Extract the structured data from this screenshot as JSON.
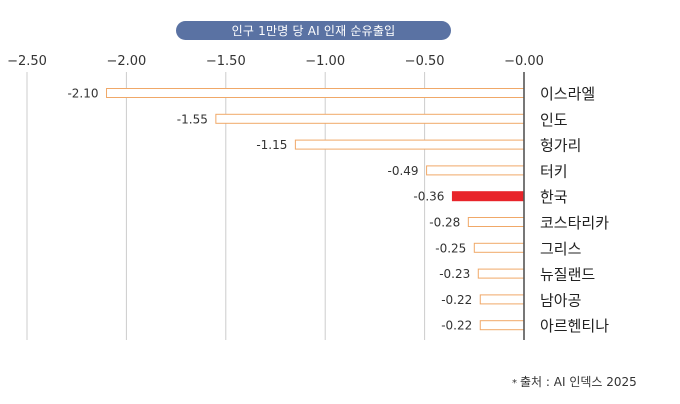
{
  "chart_data": {
    "type": "bar",
    "orientation": "horizontal",
    "title": "인구 1만명 당 AI 인재 순유출입",
    "categories": [
      "이스라엘",
      "인도",
      "헝가리",
      "터키",
      "한국",
      "코스타리카",
      "그리스",
      "뉴질랜드",
      "남아공",
      "아르헨티나"
    ],
    "values": [
      -2.1,
      -1.55,
      -1.15,
      -0.49,
      -0.36,
      -0.28,
      -0.25,
      -0.23,
      -0.22,
      -0.22
    ],
    "value_labels": [
      "-2.10",
      "-1.55",
      "-1.15",
      "-0.49",
      "-0.36",
      "-0.28",
      "-0.25",
      "-0.23",
      "-0.22",
      "-0.22"
    ],
    "highlight_index": 4,
    "xlim": [
      -2.5,
      0
    ],
    "xticks": [
      -2.5,
      -2.0,
      -1.5,
      -1.0,
      -0.5,
      0.0
    ],
    "xtick_labels": [
      "−2.50",
      "−2.00",
      "−1.50",
      "−1.00",
      "−0.50",
      "−0.00"
    ],
    "axis_position": "top",
    "grid": true,
    "colors": {
      "bar_outline": "#f0a868",
      "bar_fill": "#ffffff",
      "highlight": "#e8242a",
      "grid": "#cccccc",
      "title_bg": "#5a72a3"
    }
  },
  "source": {
    "star": "*",
    "text": "출처 : AI 인덱스 2025"
  }
}
